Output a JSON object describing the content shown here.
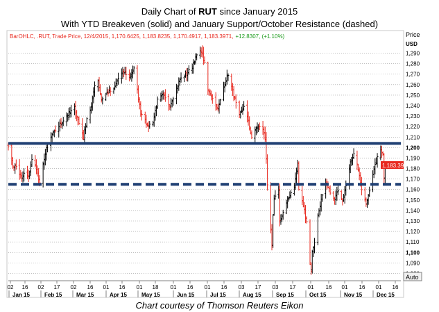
{
  "title": {
    "line1_prefix": "Daily Chart of ",
    "line1_symbol": "RUT",
    "line1_suffix": " since January 2015",
    "line2": "With YTD Breakeven (solid) and January Support/October Resistance (dashed)"
  },
  "legend": {
    "series": "BarOHLC, .RUT, Trade Price, 12/4/2015, 1,170.6425, 1,183.8235, 1,170.4917, 1,183.3971,",
    "change": "+12.8307, (+1.10%)"
  },
  "axis": {
    "price_label": "Price",
    "currency_label": "USD",
    "auto_button": "Auto"
  },
  "caption": "Chart courtesy of Thomson Reuters Eikon",
  "colors": {
    "up_bar": "#000000",
    "down_bar": "#e8281e",
    "breakeven_line": "#1f3f73",
    "dashed_line": "#1f3f73",
    "gridline": "#9a9a9a",
    "last_price_tag": "#e8281e",
    "change_text": "#1a9a1a"
  },
  "chart_data": {
    "type": "ohlc",
    "symbol": ".RUT",
    "ylim": [
      1075,
      1297
    ],
    "y_ticks": [
      1080,
      1090,
      1100,
      1110,
      1120,
      1130,
      1140,
      1150,
      1160,
      1170,
      1180,
      1190,
      1200,
      1210,
      1220,
      1230,
      1240,
      1250,
      1260,
      1270,
      1280,
      1290
    ],
    "y_ticks_bold": [
      1100,
      1200
    ],
    "last_price": "1,183.3971",
    "breakeven_level": 1204,
    "support_resistance_level": 1165,
    "x_day_labels": [
      "02",
      "16",
      "02",
      "17",
      "02",
      "16",
      "01",
      "16",
      "01",
      "18",
      "01",
      "16",
      "01",
      "16",
      "03",
      "17",
      "03",
      "17",
      "01",
      "16",
      "01",
      "16",
      "01",
      "16"
    ],
    "x_month_labels": [
      "Jan 15",
      "Feb 15",
      "Mar 15",
      "Apr 15",
      "May 15",
      "Jun 15",
      "Jul 15",
      "Aug 15",
      "Sep 15",
      "Oct 15",
      "Nov 15",
      "Dec 15"
    ],
    "close_anchors": [
      [
        "2015-01-02",
        1203
      ],
      [
        "2015-01-06",
        1183
      ],
      [
        "2015-01-09",
        1182
      ],
      [
        "2015-01-14",
        1170
      ],
      [
        "2015-01-16",
        1175
      ],
      [
        "2015-01-20",
        1172
      ],
      [
        "2015-01-23",
        1188
      ],
      [
        "2015-01-27",
        1180
      ],
      [
        "2015-01-30",
        1165
      ],
      [
        "2015-02-03",
        1190
      ],
      [
        "2015-02-06",
        1203
      ],
      [
        "2015-02-10",
        1212
      ],
      [
        "2015-02-17",
        1222
      ],
      [
        "2015-02-20",
        1226
      ],
      [
        "2015-02-24",
        1231
      ],
      [
        "2015-03-02",
        1238
      ],
      [
        "2015-03-06",
        1223
      ],
      [
        "2015-03-10",
        1210
      ],
      [
        "2015-03-13",
        1228
      ],
      [
        "2015-03-17",
        1238
      ],
      [
        "2015-03-20",
        1260
      ],
      [
        "2015-03-23",
        1264
      ],
      [
        "2015-03-26",
        1246
      ],
      [
        "2015-03-31",
        1252
      ],
      [
        "2015-04-06",
        1255
      ],
      [
        "2015-04-10",
        1266
      ],
      [
        "2015-04-15",
        1272
      ],
      [
        "2015-04-20",
        1268
      ],
      [
        "2015-04-24",
        1275
      ],
      [
        "2015-04-30",
        1233
      ],
      [
        "2015-05-04",
        1228
      ],
      [
        "2015-05-06",
        1220
      ],
      [
        "2015-05-11",
        1225
      ],
      [
        "2015-05-15",
        1245
      ],
      [
        "2015-05-20",
        1250
      ],
      [
        "2015-05-26",
        1240
      ],
      [
        "2015-05-29",
        1248
      ],
      [
        "2015-06-04",
        1265
      ],
      [
        "2015-06-10",
        1270
      ],
      [
        "2015-06-15",
        1278
      ],
      [
        "2015-06-19",
        1288
      ],
      [
        "2015-06-23",
        1292
      ],
      [
        "2015-06-26",
        1280
      ],
      [
        "2015-06-29",
        1255
      ],
      [
        "2015-07-02",
        1250
      ],
      [
        "2015-07-08",
        1236
      ],
      [
        "2015-07-13",
        1258
      ],
      [
        "2015-07-17",
        1270
      ],
      [
        "2015-07-22",
        1250
      ],
      [
        "2015-07-27",
        1230
      ],
      [
        "2015-07-31",
        1240
      ],
      [
        "2015-08-04",
        1225
      ],
      [
        "2015-08-07",
        1210
      ],
      [
        "2015-08-12",
        1220
      ],
      [
        "2015-08-17",
        1218
      ],
      [
        "2015-08-19",
        1208
      ],
      [
        "2015-08-20",
        1190
      ],
      [
        "2015-08-21",
        1165
      ],
      [
        "2015-08-24",
        1120
      ],
      [
        "2015-08-25",
        1105
      ],
      [
        "2015-08-26",
        1135
      ],
      [
        "2015-08-27",
        1150
      ],
      [
        "2015-08-31",
        1160
      ],
      [
        "2015-09-01",
        1130
      ],
      [
        "2015-09-04",
        1138
      ],
      [
        "2015-09-10",
        1155
      ],
      [
        "2015-09-14",
        1163
      ],
      [
        "2015-09-17",
        1185
      ],
      [
        "2015-09-18",
        1160
      ],
      [
        "2015-09-22",
        1145
      ],
      [
        "2015-09-25",
        1130
      ],
      [
        "2015-09-28",
        1090
      ],
      [
        "2015-09-29",
        1083
      ],
      [
        "2015-09-30",
        1100
      ],
      [
        "2015-10-02",
        1110
      ],
      [
        "2015-10-05",
        1135
      ],
      [
        "2015-10-08",
        1150
      ],
      [
        "2015-10-12",
        1165
      ],
      [
        "2015-10-16",
        1158
      ],
      [
        "2015-10-20",
        1150
      ],
      [
        "2015-10-23",
        1160
      ],
      [
        "2015-10-27",
        1150
      ],
      [
        "2015-10-30",
        1165
      ],
      [
        "2015-11-03",
        1185
      ],
      [
        "2015-11-06",
        1195
      ],
      [
        "2015-11-10",
        1180
      ],
      [
        "2015-11-13",
        1160
      ],
      [
        "2015-11-16",
        1150
      ],
      [
        "2015-11-17",
        1145
      ],
      [
        "2015-11-19",
        1155
      ],
      [
        "2015-11-23",
        1175
      ],
      [
        "2015-11-27",
        1190
      ],
      [
        "2015-11-30",
        1198
      ],
      [
        "2015-12-02",
        1195
      ],
      [
        "2015-12-03",
        1170
      ],
      [
        "2015-12-04",
        1183
      ]
    ]
  }
}
